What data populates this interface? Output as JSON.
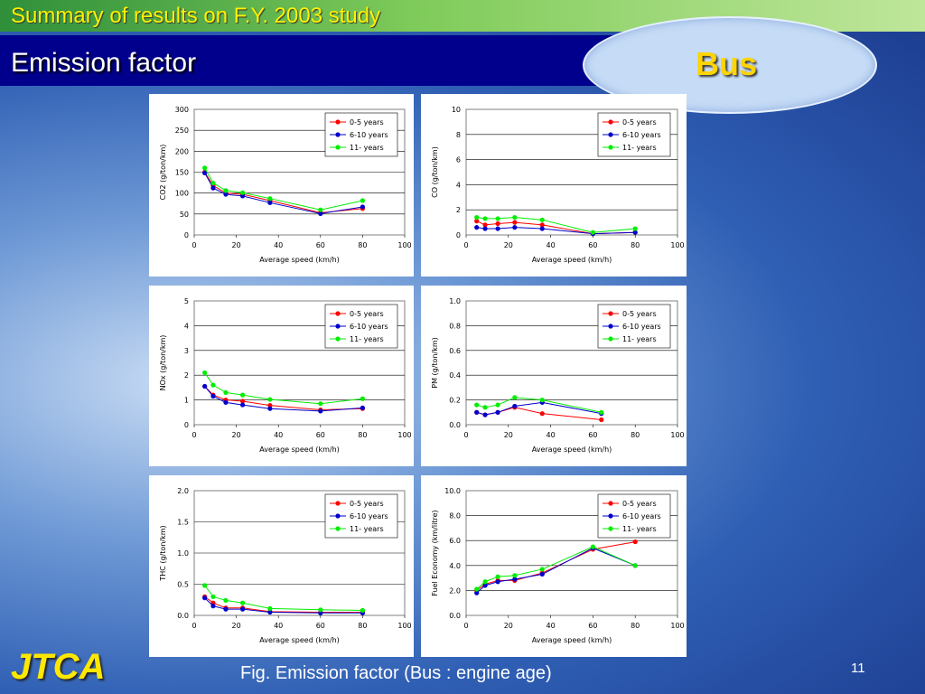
{
  "header": {
    "top_title": "Summary of results on F.Y. 2003 study",
    "section_title": "Emission factor",
    "badge": "Bus"
  },
  "footer": {
    "logo": "JTCA",
    "caption": "Fig. Emission factor (Bus : engine age)",
    "page_number": "11"
  },
  "colors": {
    "red": "#ff0000",
    "blue": "#0000cc",
    "green": "#00ee00"
  },
  "chart_data": [
    {
      "type": "line",
      "xlabel": "Average speed (km/h)",
      "ylabel": "CO2 (g/ton/km)",
      "xlim": [
        0,
        100
      ],
      "ylim": [
        0,
        300
      ],
      "xticks": [
        "0",
        "20",
        "40",
        "60",
        "80",
        "100"
      ],
      "yticks": [
        "0",
        "50",
        "100",
        "150",
        "200",
        "250",
        "300"
      ],
      "series": [
        {
          "name": "0-5 years",
          "color": "#ff0000",
          "x": [
            5,
            9,
            15,
            23,
            36,
            60,
            80
          ],
          "y": [
            150,
            118,
            100,
            97,
            82,
            53,
            63
          ]
        },
        {
          "name": "6-10 years",
          "color": "#0000cc",
          "x": [
            5,
            9,
            15,
            23,
            36,
            60,
            80
          ],
          "y": [
            148,
            112,
            97,
            93,
            77,
            51,
            67
          ]
        },
        {
          "name": "11- years",
          "color": "#00ee00",
          "x": [
            5,
            9,
            15,
            23,
            36,
            60,
            80
          ],
          "y": [
            160,
            124,
            106,
            101,
            87,
            60,
            82
          ]
        }
      ]
    },
    {
      "type": "line",
      "xlabel": "Average speed (km/h)",
      "ylabel": "CO (g/ton/km)",
      "xlim": [
        0,
        100
      ],
      "ylim": [
        0,
        10
      ],
      "xticks": [
        "0",
        "20",
        "40",
        "60",
        "80",
        "100"
      ],
      "yticks": [
        "0",
        "2",
        "4",
        "6",
        "8",
        "10"
      ],
      "series": [
        {
          "name": "0-5 years",
          "color": "#ff0000",
          "x": [
            5,
            9,
            15,
            23,
            36,
            60,
            80
          ],
          "y": [
            1.1,
            0.8,
            0.9,
            1.0,
            0.8,
            0.1,
            0.2
          ]
        },
        {
          "name": "6-10 years",
          "color": "#0000cc",
          "x": [
            5,
            9,
            15,
            23,
            36,
            60,
            80
          ],
          "y": [
            0.6,
            0.5,
            0.5,
            0.6,
            0.5,
            0.1,
            0.2
          ]
        },
        {
          "name": "11- years",
          "color": "#00ee00",
          "x": [
            5,
            9,
            15,
            23,
            36,
            60,
            80
          ],
          "y": [
            1.4,
            1.3,
            1.3,
            1.4,
            1.2,
            0.2,
            0.5
          ]
        }
      ]
    },
    {
      "type": "line",
      "xlabel": "Average speed (km/h)",
      "ylabel": "NOx (g/ton/km)",
      "xlim": [
        0,
        100
      ],
      "ylim": [
        0,
        5
      ],
      "xticks": [
        "0",
        "20",
        "40",
        "60",
        "80",
        "100"
      ],
      "yticks": [
        "0",
        "1",
        "2",
        "3",
        "4",
        "5"
      ],
      "series": [
        {
          "name": "0-5 years",
          "color": "#ff0000",
          "x": [
            5,
            9,
            15,
            23,
            36,
            60,
            80
          ],
          "y": [
            1.55,
            1.2,
            1.0,
            0.95,
            0.78,
            0.6,
            0.65
          ]
        },
        {
          "name": "6-10 years",
          "color": "#0000cc",
          "x": [
            5,
            9,
            15,
            23,
            36,
            60,
            80
          ],
          "y": [
            1.55,
            1.15,
            0.9,
            0.8,
            0.65,
            0.55,
            0.68
          ]
        },
        {
          "name": "11- years",
          "color": "#00ee00",
          "x": [
            5,
            9,
            15,
            23,
            36,
            60,
            80
          ],
          "y": [
            2.1,
            1.6,
            1.3,
            1.2,
            1.02,
            0.85,
            1.05
          ]
        }
      ]
    },
    {
      "type": "line",
      "xlabel": "Average speed (km/h)",
      "ylabel": "PM (g/ton/km)",
      "xlim": [
        0,
        100
      ],
      "ylim": [
        0,
        1.0
      ],
      "xticks": [
        "0",
        "20",
        "40",
        "60",
        "80",
        "100"
      ],
      "yticks": [
        "0.0",
        "0.2",
        "0.4",
        "0.6",
        "0.8",
        "1.0"
      ],
      "series": [
        {
          "name": "0-5 years",
          "color": "#ff0000",
          "x": [
            5,
            9,
            15,
            23,
            36,
            64
          ],
          "y": [
            0.1,
            0.08,
            0.1,
            0.14,
            0.09,
            0.04
          ]
        },
        {
          "name": "6-10 years",
          "color": "#0000cc",
          "x": [
            5,
            9,
            15,
            23,
            36,
            64
          ],
          "y": [
            0.1,
            0.08,
            0.1,
            0.15,
            0.18,
            0.09
          ]
        },
        {
          "name": "11- years",
          "color": "#00ee00",
          "x": [
            5,
            9,
            15,
            23,
            36,
            64
          ],
          "y": [
            0.16,
            0.14,
            0.16,
            0.22,
            0.2,
            0.1
          ]
        }
      ]
    },
    {
      "type": "line",
      "xlabel": "Average speed (km/h)",
      "ylabel": "THC (g/ton/km)",
      "xlim": [
        0,
        100
      ],
      "ylim": [
        0,
        2.0
      ],
      "xticks": [
        "0",
        "20",
        "40",
        "60",
        "80",
        "100"
      ],
      "yticks": [
        "0.0",
        "0.5",
        "1.0",
        "1.5",
        "2.0"
      ],
      "series": [
        {
          "name": "0-5 years",
          "color": "#ff0000",
          "x": [
            5,
            9,
            15,
            23,
            36,
            60,
            80
          ],
          "y": [
            0.3,
            0.2,
            0.12,
            0.12,
            0.06,
            0.05,
            0.05
          ]
        },
        {
          "name": "6-10 years",
          "color": "#0000cc",
          "x": [
            5,
            9,
            15,
            23,
            36,
            60,
            80
          ],
          "y": [
            0.28,
            0.15,
            0.1,
            0.1,
            0.05,
            0.04,
            0.04
          ]
        },
        {
          "name": "11- years",
          "color": "#00ee00",
          "x": [
            5,
            9,
            15,
            23,
            36,
            60,
            80
          ],
          "y": [
            0.48,
            0.3,
            0.24,
            0.2,
            0.11,
            0.09,
            0.08
          ]
        }
      ]
    },
    {
      "type": "line",
      "xlabel": "Average speed (km/h)",
      "ylabel": "Fuel Economy (km/litre)",
      "xlim": [
        0,
        100
      ],
      "ylim": [
        0,
        10.0
      ],
      "xticks": [
        "0",
        "20",
        "40",
        "60",
        "80",
        "100"
      ],
      "yticks": [
        "0.0",
        "2.0",
        "4.0",
        "6.0",
        "8.0",
        "10.0"
      ],
      "series": [
        {
          "name": "0-5 years",
          "color": "#ff0000",
          "x": [
            5,
            9,
            15,
            23,
            36,
            60,
            80
          ],
          "y": [
            2.0,
            2.5,
            2.8,
            2.8,
            3.4,
            5.3,
            5.9
          ]
        },
        {
          "name": "6-10 years",
          "color": "#0000cc",
          "x": [
            5,
            9,
            15,
            23,
            36,
            60,
            80
          ],
          "y": [
            1.8,
            2.4,
            2.7,
            2.9,
            3.3,
            5.4,
            4.0
          ]
        },
        {
          "name": "11- years",
          "color": "#00ee00",
          "x": [
            5,
            9,
            15,
            23,
            36,
            60,
            80
          ],
          "y": [
            2.1,
            2.7,
            3.1,
            3.2,
            3.7,
            5.5,
            4.0
          ]
        }
      ]
    }
  ]
}
